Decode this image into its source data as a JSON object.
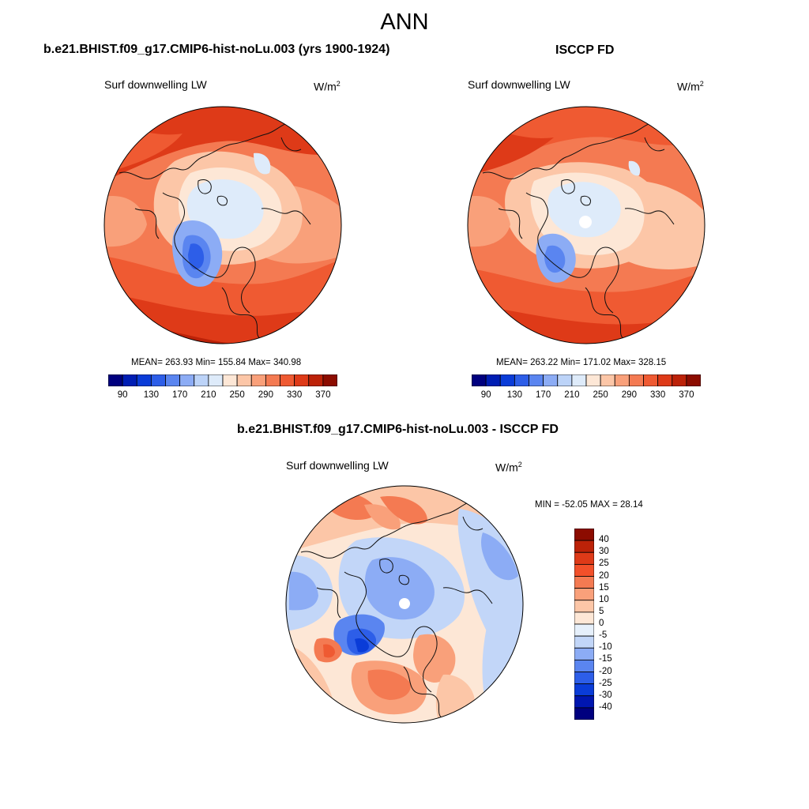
{
  "title": "ANN",
  "panels": [
    {
      "title": "b.e21.BHIST.f09_g17.CMIP6-hist-noLu.003 (yrs 1900-1924)",
      "variable": "Surf downwelling LW",
      "units_base": "W/m",
      "units_exp": "2",
      "stats": "MEAN= 263.93  Min= 155.84  Max= 340.98"
    },
    {
      "title": "ISCCP FD",
      "variable": "Surf downwelling LW",
      "units_base": "W/m",
      "units_exp": "2",
      "stats": "MEAN= 263.22  Min= 171.02  Max= 328.15"
    },
    {
      "title": "b.e21.BHIST.f09_g17.CMIP6-hist-noLu.003 - ISCCP FD",
      "variable": "Surf downwelling LW",
      "units_base": "W/m",
      "units_exp": "2",
      "stats": "MIN = -52.05 MAX =  28.14"
    }
  ],
  "colorbar_abs": {
    "tick_labels": [
      "90",
      "130",
      "170",
      "210",
      "250",
      "290",
      "330",
      "370"
    ],
    "colors": [
      "#00007f",
      "#001eb4",
      "#0a3cd8",
      "#2d5ee8",
      "#5a85f0",
      "#8cacf5",
      "#bcd3f8",
      "#deebfa",
      "#fde7d6",
      "#fcc6a7",
      "#f9a07a",
      "#f47a52",
      "#ef5a32",
      "#de3a18",
      "#bc2208",
      "#8c0c00"
    ]
  },
  "colorbar_diff": {
    "tick_labels": [
      "40",
      "30",
      "25",
      "20",
      "15",
      "10",
      "5",
      "0",
      "-5",
      "-10",
      "-15",
      "-20",
      "-25",
      "-30",
      "-40"
    ],
    "colors": [
      "#8c0c00",
      "#bc2208",
      "#de3a18",
      "#f2502a",
      "#f47a52",
      "#f9a07a",
      "#fcc6a7",
      "#fde7d6",
      "#e6f0fb",
      "#c2d6f8",
      "#8cacf5",
      "#5a85f0",
      "#2d5ee8",
      "#0a3cd8",
      "#0016b0",
      "#00007f"
    ]
  }
}
